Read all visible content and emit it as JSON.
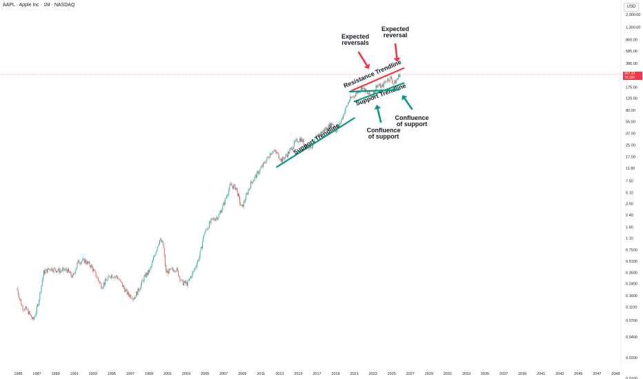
{
  "header": {
    "symbol_title": "AAPL · Apple Inc · 1M · NASDAQ",
    "currency": "USD"
  },
  "price_tag": {
    "price": "267.33",
    "countdown": "7d 22h"
  },
  "colors": {
    "up": "#26a69a",
    "down": "#ef5350",
    "support": "#089981",
    "resistance": "#f23645",
    "price_line": "#f23645"
  },
  "chart_data": {
    "type": "candlestick",
    "scale": "log",
    "y_ticks": [
      "2,000.00",
      "1,300.00",
      "860.00",
      "585.00",
      "385.00",
      "175.00",
      "120.00",
      "80.00",
      "55.00",
      "37.00",
      "25.00",
      "17.00",
      "11.50",
      "7.50",
      "5.10",
      "3.50",
      "2.40",
      "1.60",
      "1.10",
      "0.7500",
      "0.5100",
      "0.3500",
      "0.2400",
      "0.1600",
      "0.1100",
      "0.0700",
      "0.0400",
      "0.0200",
      "0.0100"
    ],
    "x_ticks": [
      "1985",
      "1987",
      "1989",
      "1991",
      "1993",
      "1995",
      "1997",
      "1999",
      "2001",
      "2003",
      "2005",
      "2007",
      "2009",
      "2011",
      "2013",
      "2015",
      "2017",
      "2019",
      "2021",
      "2023",
      "2025",
      "2027",
      "2029",
      "2031",
      "2033",
      "2035",
      "2037",
      "2039",
      "2041",
      "2043",
      "2045",
      "2047",
      "2049"
    ],
    "price_path": [
      [
        1984.9,
        0.21
      ],
      [
        1985.5,
        0.11
      ],
      [
        1986.0,
        0.1
      ],
      [
        1986.7,
        0.07
      ],
      [
        1987.2,
        0.12
      ],
      [
        1987.8,
        0.35
      ],
      [
        1988.5,
        0.4
      ],
      [
        1989.5,
        0.37
      ],
      [
        1990.3,
        0.38
      ],
      [
        1990.9,
        0.3
      ],
      [
        1991.5,
        0.5
      ],
      [
        1992.2,
        0.52
      ],
      [
        1992.9,
        0.43
      ],
      [
        1993.5,
        0.3
      ],
      [
        1994.0,
        0.22
      ],
      [
        1995.0,
        0.32
      ],
      [
        1995.7,
        0.3
      ],
      [
        1996.2,
        0.23
      ],
      [
        1996.8,
        0.17
      ],
      [
        1997.5,
        0.15
      ],
      [
        1998.0,
        0.2
      ],
      [
        1998.6,
        0.3
      ],
      [
        1999.2,
        0.38
      ],
      [
        1999.6,
        0.58
      ],
      [
        2000.2,
        1.05
      ],
      [
        2000.6,
        0.9
      ],
      [
        2000.9,
        0.35
      ],
      [
        2001.4,
        0.37
      ],
      [
        2002.0,
        0.4
      ],
      [
        2002.6,
        0.25
      ],
      [
        2003.2,
        0.24
      ],
      [
        2003.8,
        0.35
      ],
      [
        2004.5,
        0.6
      ],
      [
        2005.0,
        1.3
      ],
      [
        2005.8,
        2.0
      ],
      [
        2006.5,
        2.3
      ],
      [
        2007.0,
        3.2
      ],
      [
        2007.8,
        6.5
      ],
      [
        2008.4,
        6.0
      ],
      [
        2009.0,
        3.0
      ],
      [
        2009.5,
        4.5
      ],
      [
        2010.0,
        7.0
      ],
      [
        2011.0,
        11.0
      ],
      [
        2012.3,
        21.0
      ],
      [
        2012.8,
        19.0
      ],
      [
        2013.3,
        15.0
      ],
      [
        2014.0,
        19.0
      ],
      [
        2014.8,
        28.0
      ],
      [
        2015.3,
        31.0
      ],
      [
        2016.0,
        24.0
      ],
      [
        2016.5,
        24.0
      ],
      [
        2017.2,
        35.0
      ],
      [
        2018.0,
        43.0
      ],
      [
        2018.8,
        52.0
      ],
      [
        2019.0,
        39.0
      ],
      [
        2019.5,
        50.0
      ],
      [
        2020.0,
        75.0
      ],
      [
        2020.5,
        110.0
      ],
      [
        2021.0,
        130.0
      ],
      [
        2021.9,
        175.0
      ],
      [
        2022.5,
        140.0
      ],
      [
        2023.0,
        130.0
      ],
      [
        2023.5,
        190.0
      ],
      [
        2024.0,
        175.0
      ],
      [
        2024.5,
        220.0
      ],
      [
        2025.0,
        240.0
      ],
      [
        2025.3,
        195.0
      ],
      [
        2025.7,
        230.0
      ],
      [
        2025.9,
        267.33
      ]
    ],
    "last_price": 267.33,
    "annotations": [
      {
        "text": [
          "Expected",
          "reversals"
        ],
        "arrow": "down",
        "color": "resistance"
      },
      {
        "text": [
          "Expected",
          "reversal"
        ],
        "arrow": "down",
        "color": "resistance"
      },
      {
        "text": [
          "Confluence",
          "of support"
        ],
        "arrow": "up",
        "color": "support"
      },
      {
        "text": [
          "Confluence",
          "of support"
        ],
        "arrow": "up",
        "color": "support"
      }
    ],
    "trendlines": [
      {
        "label": "Support Trendline",
        "type": "support",
        "from": [
          2012.7,
          12.0
        ],
        "to": [
          2021.0,
          62.0
        ]
      },
      {
        "label": "Resistance Trendline",
        "type": "resistance",
        "from": [
          2020.7,
          155.0
        ],
        "to": [
          2026.3,
          330.0
        ]
      },
      {
        "label": "Support Trendline",
        "type": "support",
        "from": [
          2021.0,
          108.0
        ],
        "to": [
          2026.3,
          200.0
        ]
      },
      {
        "label": "",
        "type": "support",
        "from": [
          2020.5,
          150.0
        ],
        "to": [
          2025.8,
          160.0
        ]
      }
    ]
  }
}
